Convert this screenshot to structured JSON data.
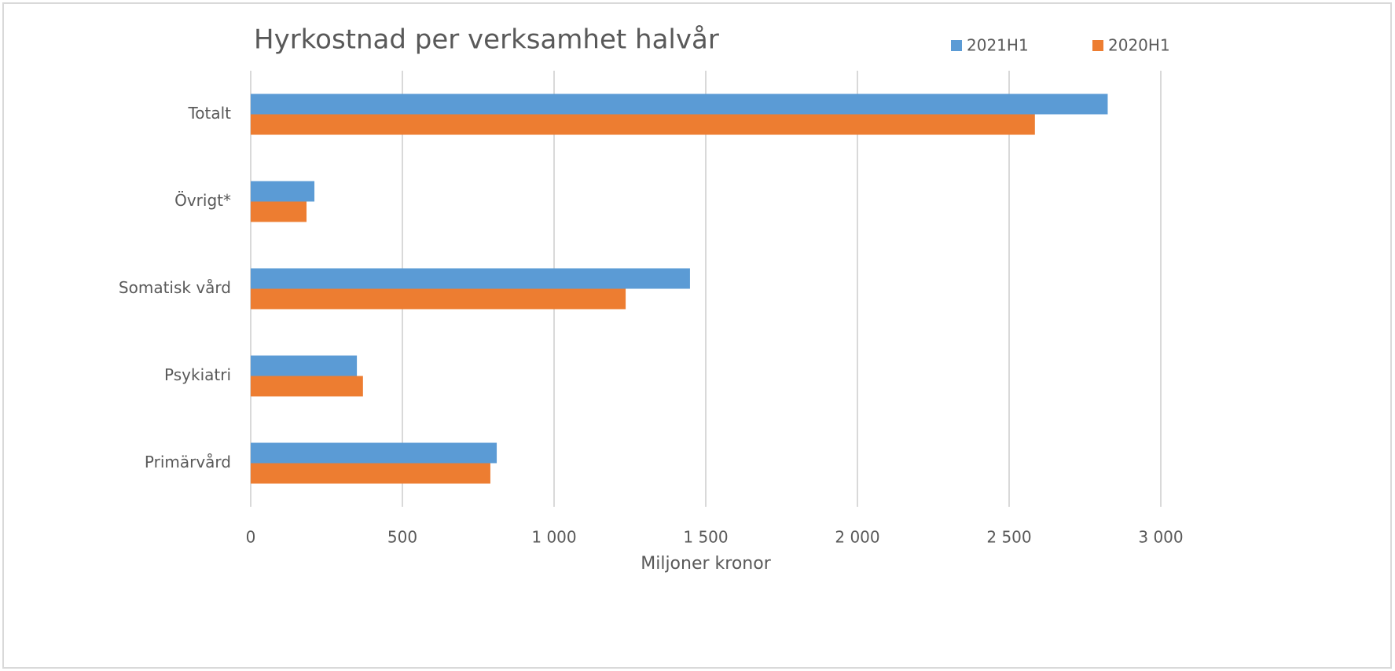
{
  "chart_data": {
    "type": "hbar",
    "title": "Hyrkostnad per verksamhet halvår",
    "x_label": "Miljoner kronor",
    "categories": [
      "Totalt",
      "Övrigt*",
      "Somatisk vård",
      "Psykiatri",
      "Primärvård"
    ],
    "series": [
      {
        "name": "2021H1",
        "color": "#5b9bd5",
        "values": [
          2825,
          210,
          1448,
          350,
          811
        ]
      },
      {
        "name": "2020H1",
        "color": "#ed7d31",
        "values": [
          2585,
          184,
          1236,
          370,
          790
        ]
      }
    ],
    "xlim": [
      0,
      3000
    ],
    "xticks": [
      0,
      500,
      {
        "value": 1000,
        "label": "1 000"
      },
      {
        "value": 1500,
        "label": "1 500"
      },
      {
        "value": 2000,
        "label": "2 000"
      },
      {
        "value": 2500,
        "label": "2 500"
      },
      {
        "value": 3000,
        "label": "3 000"
      }
    ],
    "grid": true,
    "legend": "top-right"
  }
}
